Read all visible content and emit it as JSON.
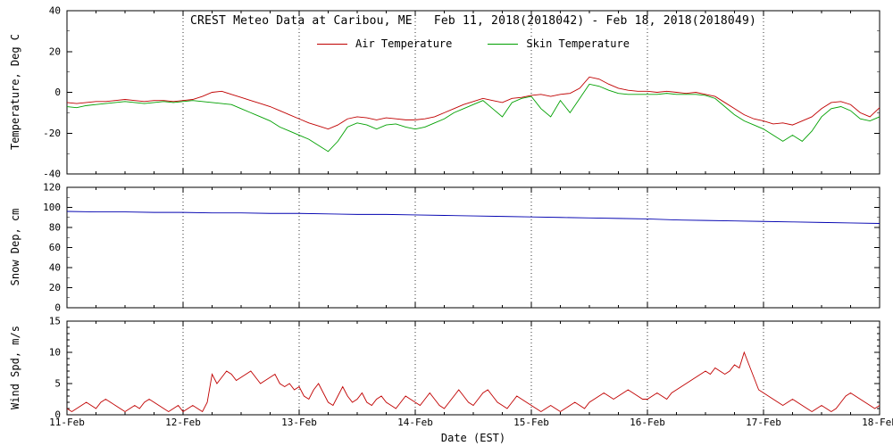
{
  "title": "CREST Meteo Data at Caribou, ME   Feb 11, 2018(2018042) - Feb 18, 2018(2018049)",
  "xlabel": "Date (EST)",
  "x_ticks": [
    "11-Feb",
    "12-Feb",
    "13-Feb",
    "14-Feb",
    "15-Feb",
    "16-Feb",
    "17-Feb",
    "18-Feb"
  ],
  "legend": {
    "air_label": "Air Temperature",
    "skin_label": "Skin Temperature"
  },
  "chart_data": [
    {
      "type": "line",
      "id": "temperature",
      "ylabel": "Temperature, Deg C",
      "ylim": [
        -40,
        40
      ],
      "yticks": [
        -40,
        -20,
        0,
        20,
        40
      ],
      "y_minor": 10,
      "grid": "vertical-dotted",
      "legend_position": "top-center-inside",
      "series": [
        {
          "name": "Air Temperature",
          "color": "#c00000",
          "x_start": 0,
          "x_step": 0.0833333333,
          "values": [
            -5,
            -5.5,
            -5,
            -4.5,
            -4.5,
            -4,
            -3.5,
            -4,
            -4.5,
            -4,
            -4,
            -4.5,
            -4,
            -3.5,
            -2,
            0,
            0.5,
            -1,
            -2.5,
            -4,
            -5.5,
            -7,
            -9,
            -11,
            -13,
            -15,
            -16.5,
            -18,
            -16,
            -13,
            -12,
            -12.5,
            -13.5,
            -12.5,
            -13,
            -13.5,
            -13.5,
            -13,
            -12,
            -10,
            -8,
            -6,
            -4.5,
            -3,
            -4,
            -5,
            -3,
            -2.5,
            -1.5,
            -1,
            -2,
            -1,
            -0.5,
            2,
            7.5,
            6.5,
            4,
            2,
            1,
            0.5,
            0.5,
            0,
            0.5,
            0,
            -0.5,
            0,
            -1,
            -2,
            -5,
            -8,
            -11,
            -13,
            -14,
            -15.5,
            -15,
            -16,
            -14,
            -12,
            -8,
            -5,
            -4.5,
            -6,
            -10,
            -12,
            -7.5
          ]
        },
        {
          "name": "Skin Temperature",
          "color": "#00a000",
          "x_start": 0,
          "x_step": 0.0833333333,
          "values": [
            -7,
            -7.5,
            -6.5,
            -6,
            -5.5,
            -5,
            -4.5,
            -5,
            -5.5,
            -5,
            -4.5,
            -5,
            -4.5,
            -4,
            -4.5,
            -5,
            -5.5,
            -6,
            -8,
            -10,
            -12,
            -14,
            -17,
            -19,
            -21,
            -23,
            -26,
            -29,
            -24,
            -17,
            -15,
            -16,
            -18,
            -16,
            -15.5,
            -17,
            -18,
            -17,
            -15,
            -13,
            -10,
            -8,
            -6,
            -4,
            -8,
            -12,
            -5,
            -3,
            -2,
            -8,
            -12,
            -4,
            -10,
            -3,
            4,
            3,
            1,
            -0.5,
            -1,
            -1,
            -1,
            -1,
            -0.5,
            -1,
            -1,
            -1,
            -1.5,
            -3,
            -7,
            -11,
            -14,
            -16,
            -18,
            -21,
            -24,
            -21,
            -24,
            -19,
            -12,
            -8,
            -7,
            -9,
            -13,
            -14,
            -12
          ]
        }
      ]
    },
    {
      "type": "line",
      "id": "snow-depth",
      "ylabel": "Snow Dep, cm",
      "ylim": [
        0,
        120
      ],
      "yticks": [
        0,
        20,
        40,
        60,
        80,
        100,
        120
      ],
      "y_minor": 10,
      "grid": "vertical-dotted",
      "series": [
        {
          "name": "Snow Dep",
          "color": "#0000b0",
          "x_start": 0,
          "x_step": 0.25,
          "values": [
            96,
            95.5,
            95.5,
            95,
            95,
            94.5,
            94.5,
            94,
            94,
            93.5,
            93,
            93,
            92.5,
            92,
            91.5,
            91,
            90.5,
            90,
            89.5,
            89,
            88.5,
            87.5,
            87,
            86.5,
            86,
            85.5,
            85,
            84.5,
            84
          ]
        }
      ]
    },
    {
      "type": "line",
      "id": "wind-speed",
      "ylabel": "Wind Spd, m/s",
      "ylim": [
        0,
        15
      ],
      "yticks": [
        0,
        5,
        10,
        15
      ],
      "y_minor": 1,
      "grid": "vertical-dotted",
      "series": [
        {
          "name": "Wind Spd",
          "color": "#c00000",
          "x_start": 0,
          "x_step": 0.0416666667,
          "values": [
            1,
            0.5,
            1,
            1.5,
            2,
            1.5,
            1,
            2,
            2.5,
            2,
            1.5,
            1,
            0.5,
            1,
            1.5,
            1,
            2,
            2.5,
            2,
            1.5,
            1,
            0.5,
            1,
            1.5,
            0.5,
            1,
            1.5,
            1,
            0.5,
            2,
            6.5,
            5,
            6,
            7,
            6.5,
            5.5,
            6,
            6.5,
            7,
            6,
            5,
            5.5,
            6,
            6.5,
            5,
            4.5,
            5,
            4,
            4.5,
            3,
            2.5,
            4,
            5,
            3.5,
            2,
            1.5,
            3,
            4.5,
            3,
            2,
            2.5,
            3.5,
            2,
            1.5,
            2.5,
            3,
            2,
            1.5,
            1,
            2,
            3,
            2.5,
            2,
            1.5,
            2.5,
            3.5,
            2.5,
            1.5,
            1,
            2,
            3,
            4,
            3,
            2,
            1.5,
            2.5,
            3.5,
            4,
            3,
            2,
            1.5,
            1,
            2,
            3,
            2.5,
            2,
            1.5,
            1,
            0.5,
            1,
            1.5,
            1,
            0.5,
            1,
            1.5,
            2,
            1.5,
            1,
            2,
            2.5,
            3,
            3.5,
            3,
            2.5,
            3,
            3.5,
            4,
            3.5,
            3,
            2.5,
            2.5,
            3,
            3.5,
            3,
            2.5,
            3.5,
            4,
            4.5,
            5,
            5.5,
            6,
            6.5,
            7,
            6.5,
            7.5,
            7,
            6.5,
            7,
            8,
            7.5,
            10,
            8,
            6,
            4,
            3.5,
            3,
            2.5,
            2,
            1.5,
            2,
            2.5,
            2,
            1.5,
            1,
            0.5,
            1,
            1.5,
            1,
            0.5,
            1,
            2,
            3,
            3.5,
            3,
            2.5,
            2,
            1.5,
            1,
            1.5
          ]
        }
      ]
    }
  ]
}
